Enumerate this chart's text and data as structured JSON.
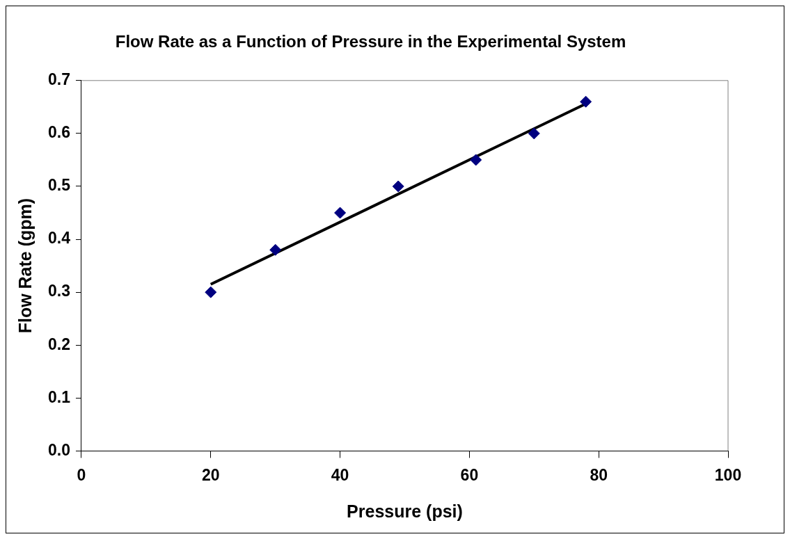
{
  "chart_data": {
    "type": "scatter",
    "title": "Flow Rate as a Function of Pressure in the Experimental System",
    "xlabel": "Pressure (psi)",
    "ylabel": "Flow Rate (gpm)",
    "series": [
      {
        "color": "#000080",
        "x": [
          20,
          30,
          40,
          49,
          61,
          70,
          78
        ],
        "values": [
          0.3,
          0.38,
          0.45,
          0.5,
          0.55,
          0.6,
          0.66
        ],
        "marker": "diamond"
      },
      {
        "type": "line",
        "color": "#000000",
        "x": [
          20,
          78
        ],
        "values": [
          0.315,
          0.656
        ],
        "marker": "none",
        "line_style": "solid"
      }
    ],
    "xlim": [
      0,
      100
    ],
    "xticks": [
      0,
      20,
      40,
      60,
      80,
      100
    ],
    "ylim": [
      0,
      0.7
    ],
    "yticks": [
      {
        "value": 0,
        "label": "0.0"
      },
      {
        "value": 0.1,
        "label": "0.1"
      },
      {
        "value": 0.2,
        "label": "0.2"
      },
      {
        "value": 0.3,
        "label": "0.3"
      },
      {
        "value": 0.4,
        "label": "0.4"
      },
      {
        "value": 0.5,
        "label": "0.5"
      },
      {
        "value": 0.6,
        "label": "0.6"
      },
      {
        "value": 0.7,
        "label": "0.7"
      }
    ],
    "grid": false,
    "legend": false
  }
}
